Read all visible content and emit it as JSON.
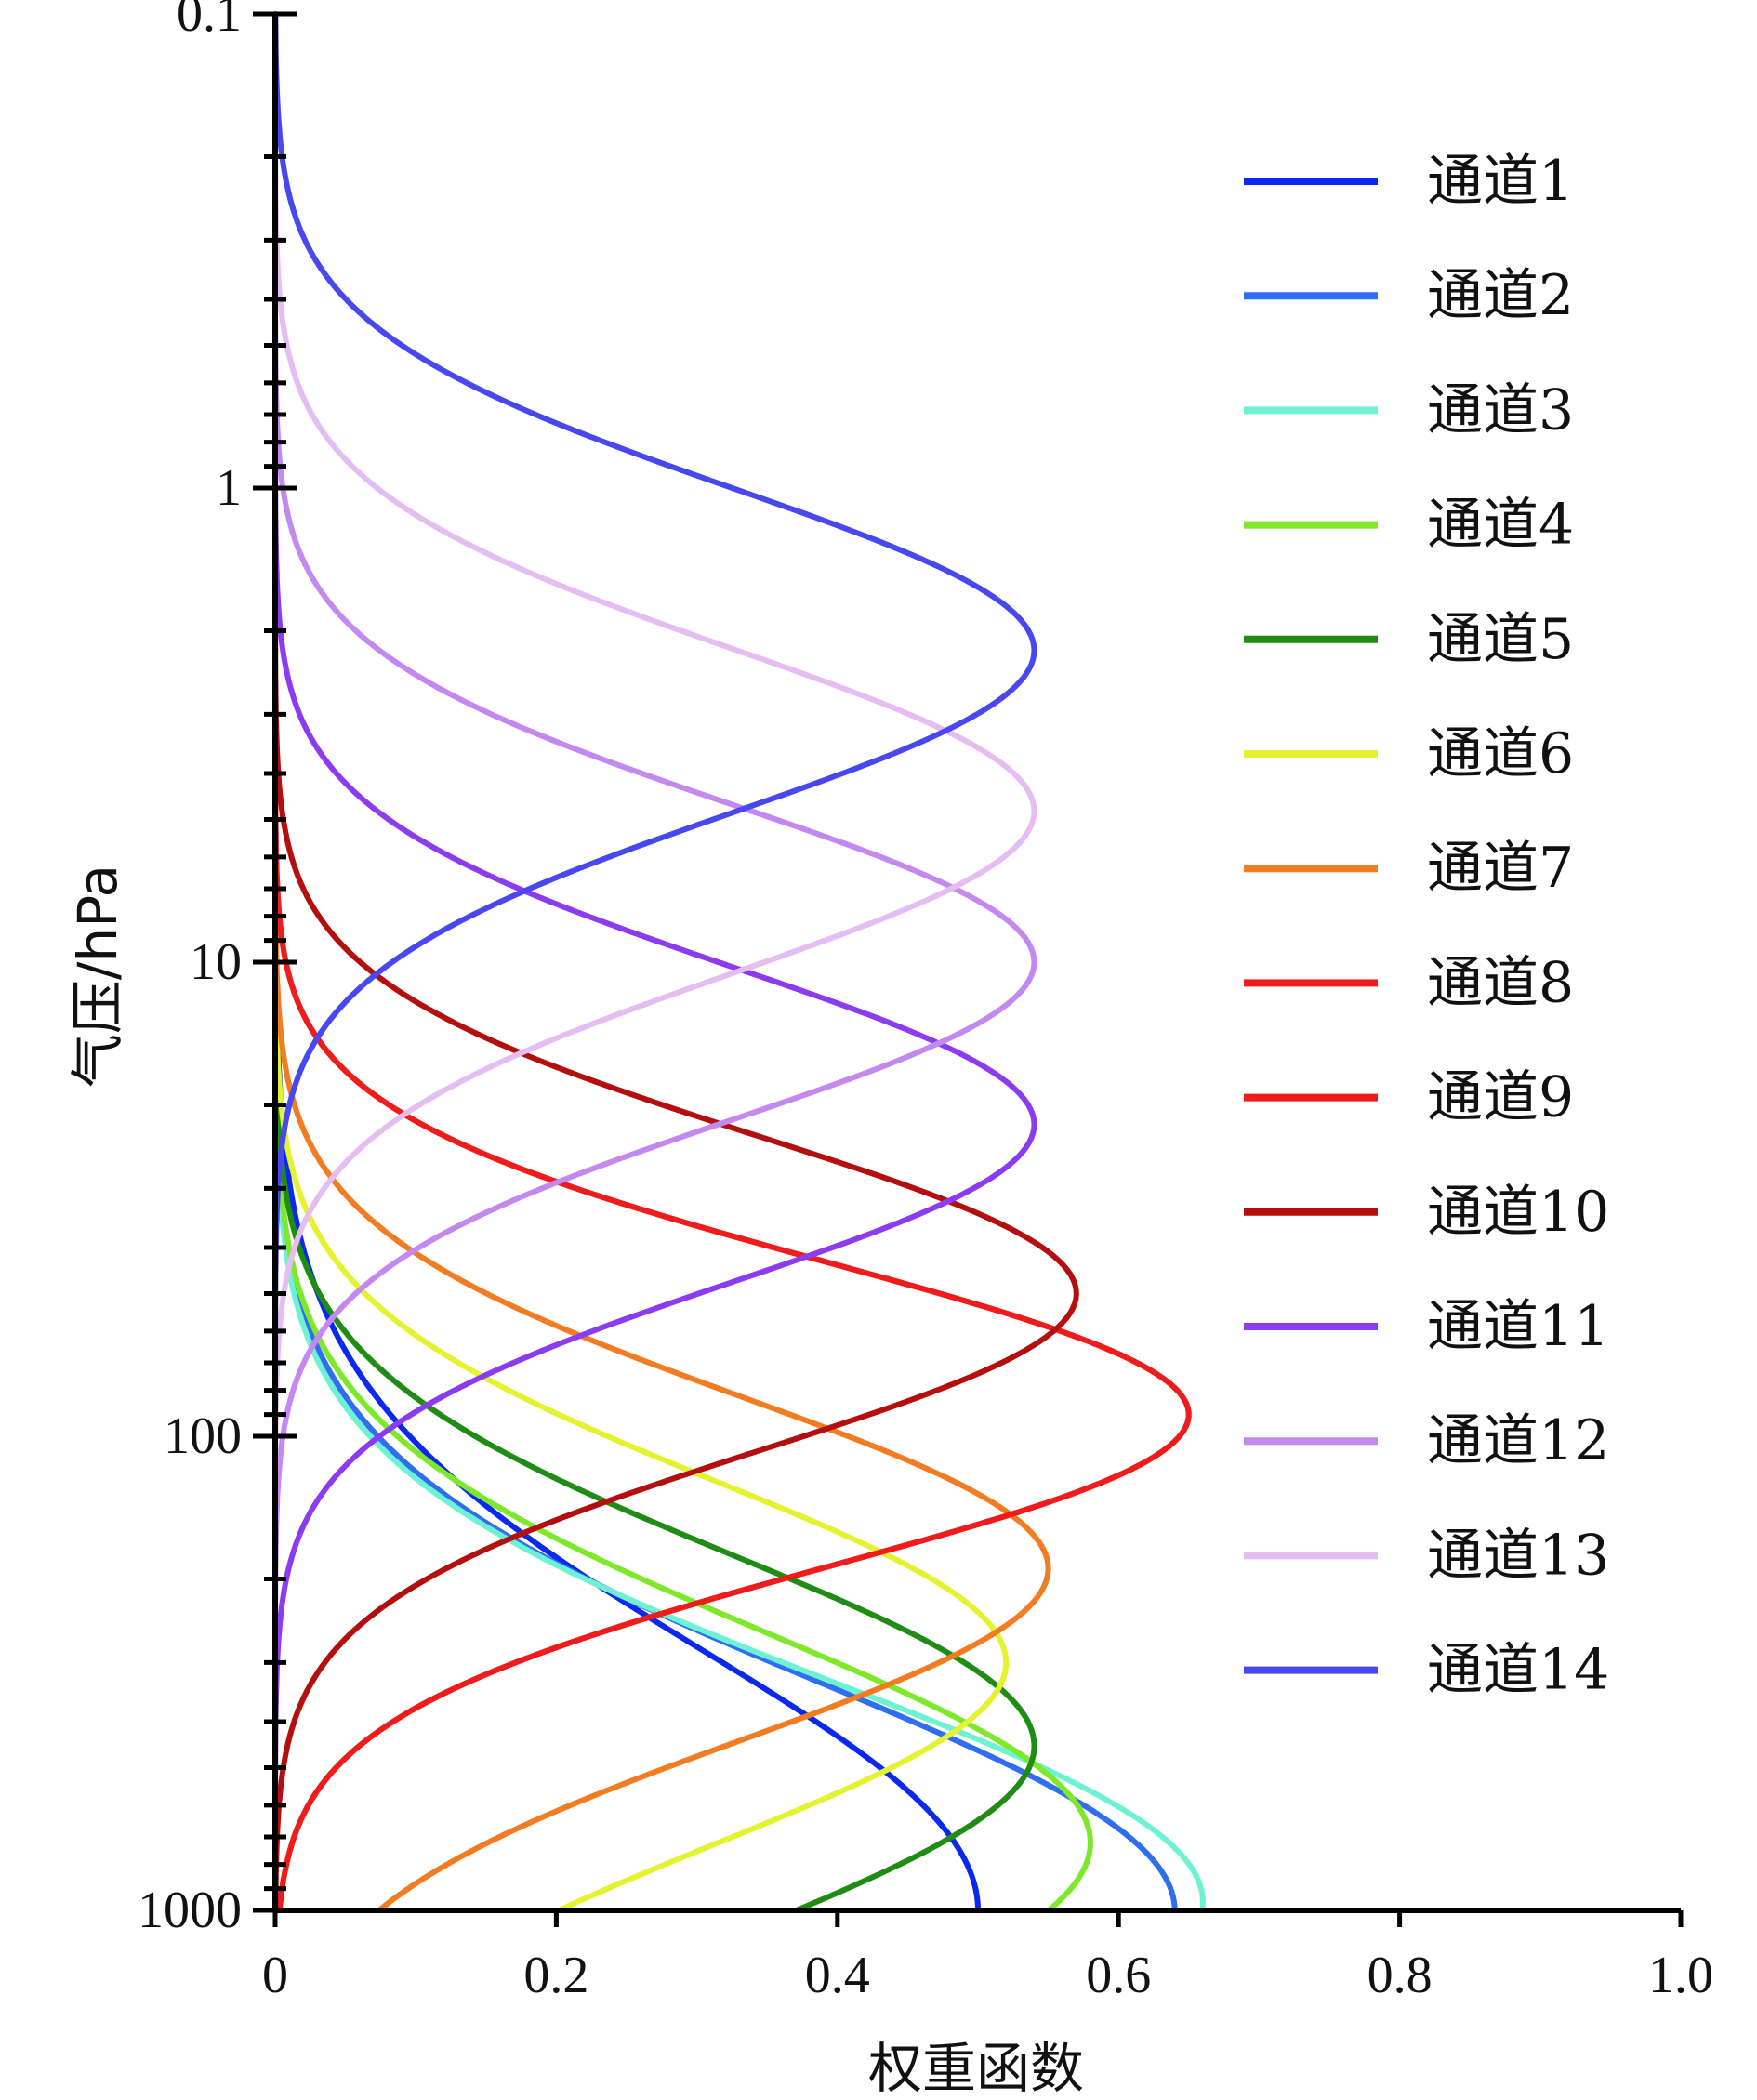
{
  "chart_data": {
    "type": "line",
    "title": "",
    "xlabel": "权重函数",
    "ylabel": "气压/hPa",
    "xlim": [
      0,
      1.0
    ],
    "ylim": [
      1000,
      0.1
    ],
    "yscale": "log",
    "x_ticks": [
      "0",
      "0.2",
      "0.4",
      "0.6",
      "0.8",
      "1.0"
    ],
    "y_ticks": [
      "0.1",
      "1",
      "10",
      "100",
      "1000"
    ],
    "grid": false,
    "legend_position": "right",
    "series": [
      {
        "name": "通道1",
        "color": "#0a28f0",
        "peak_x": 0.5,
        "peak_p": 1000,
        "width": 0.55
      },
      {
        "name": "通道2",
        "color": "#2f6ef0",
        "peak_x": 0.64,
        "peak_p": 1000,
        "width": 0.48
      },
      {
        "name": "通道3",
        "color": "#6ef2d4",
        "peak_x": 0.66,
        "peak_p": 960,
        "width": 0.46
      },
      {
        "name": "通道4",
        "color": "#7ee82a",
        "peak_x": 0.58,
        "peak_p": 720,
        "width": 0.44
      },
      {
        "name": "通道5",
        "color": "#1f8c14",
        "peak_x": 0.54,
        "peak_p": 450,
        "width": 0.4
      },
      {
        "name": "通道6",
        "color": "#e4f230",
        "peak_x": 0.52,
        "peak_p": 300,
        "width": 0.38
      },
      {
        "name": "通道7",
        "color": "#f27c22",
        "peak_x": 0.55,
        "peak_p": 190,
        "width": 0.36
      },
      {
        "name": "通道8",
        "color": "#f01c1c",
        "peak_x": 0.65,
        "peak_p": 90,
        "width": 0.32
      },
      {
        "name": "通道9",
        "color": "#f01c1c",
        "peak_x": 0.65,
        "peak_p": 90,
        "width": 0.32
      },
      {
        "name": "通道10",
        "color": "#b40e0e",
        "peak_x": 0.57,
        "peak_p": 50,
        "width": 0.33
      },
      {
        "name": "通道11",
        "color": "#8c3cf0",
        "peak_x": 0.54,
        "peak_p": 22,
        "width": 0.33
      },
      {
        "name": "通道12",
        "color": "#c489f0",
        "peak_x": 0.54,
        "peak_p": 10,
        "width": 0.33
      },
      {
        "name": "通道13",
        "color": "#e6bdf2",
        "peak_x": 0.54,
        "peak_p": 4.8,
        "width": 0.34
      },
      {
        "name": "通道14",
        "color": "#4848f0",
        "peak_x": 0.54,
        "peak_p": 2.2,
        "width": 0.34
      }
    ]
  }
}
